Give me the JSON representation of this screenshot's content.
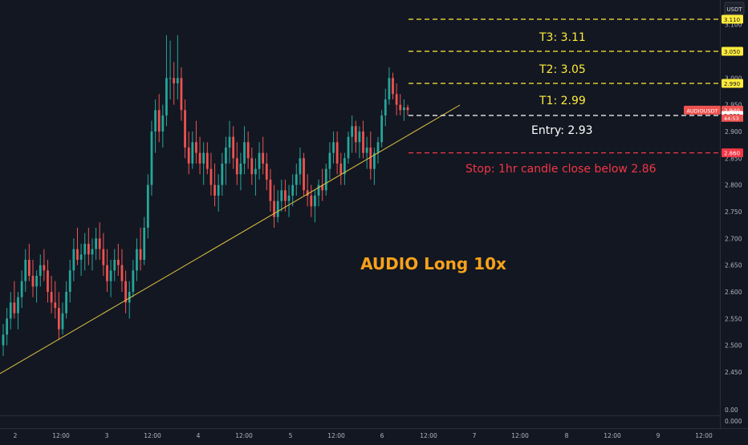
{
  "chart_data": {
    "type": "candlestick",
    "title": "AUDIO  Long 10x",
    "symbol": "AUDIOUSDT",
    "quote_currency": "USDT",
    "timeframe": "hourly",
    "price_axis": {
      "ticks": [
        "2.450",
        "2.500",
        "2.550",
        "2.600",
        "2.650",
        "2.700",
        "2.750",
        "2.800",
        "2.850",
        "2.900",
        "2.950",
        "3.000",
        "3.050",
        "3.100"
      ],
      "lower_ticks": [
        "0.00",
        "0.000"
      ]
    },
    "time_axis": {
      "ticks": [
        "2",
        "12:00",
        "3",
        "12:00",
        "4",
        "12:00",
        "5",
        "12:00",
        "6",
        "12:00",
        "7",
        "12:00",
        "8",
        "12:00",
        "9",
        "12:00"
      ]
    },
    "price_labels": [
      {
        "key": "t3",
        "text": "3.110",
        "value": 3.11,
        "color": "#ffeb3b"
      },
      {
        "key": "t2",
        "text": "3.050",
        "value": 3.05,
        "color": "#ffeb3b"
      },
      {
        "key": "t1",
        "text": "2.990",
        "value": 2.99,
        "color": "#ffeb3b"
      },
      {
        "key": "cur",
        "text": "2.940",
        "value": 2.94,
        "color": "#ef5350"
      },
      {
        "key": "entry",
        "text": "2.930",
        "value": 2.93,
        "color": "#ffffff"
      },
      {
        "key": "stop",
        "text": "2.860",
        "value": 2.86,
        "color": "#f23645"
      }
    ],
    "current_price": {
      "symbol_label": "AUDIOUSDT",
      "value": "2.940",
      "countdown": "44:53"
    },
    "levels": [
      {
        "name": "T3",
        "label": "T3: 3.11",
        "value": 3.11,
        "color": "#ffeb3b"
      },
      {
        "name": "T2",
        "label": "T2: 3.05",
        "value": 3.05,
        "color": "#ffeb3b"
      },
      {
        "name": "T1",
        "label": "T1: 2.99",
        "value": 2.99,
        "color": "#ffeb3b"
      },
      {
        "name": "Entry",
        "label": "Entry: 2.93",
        "value": 2.93,
        "color": "#ffffff"
      },
      {
        "name": "Stop",
        "label": "Stop: 1hr candle close below 2.86",
        "value": 2.86,
        "color": "#f23645"
      }
    ],
    "trendline": {
      "from": {
        "x": "2 05:00",
        "y": 2.44
      },
      "to": {
        "x": "6 17:00",
        "y": 2.96
      },
      "color": "#e0c341"
    },
    "candles": [
      {
        "o": 2.5,
        "h": 2.54,
        "l": 2.48,
        "c": 2.52
      },
      {
        "o": 2.52,
        "h": 2.57,
        "l": 2.5,
        "c": 2.55
      },
      {
        "o": 2.55,
        "h": 2.6,
        "l": 2.53,
        "c": 2.58
      },
      {
        "o": 2.58,
        "h": 2.62,
        "l": 2.55,
        "c": 2.56
      },
      {
        "o": 2.56,
        "h": 2.6,
        "l": 2.53,
        "c": 2.59
      },
      {
        "o": 2.59,
        "h": 2.64,
        "l": 2.57,
        "c": 2.62
      },
      {
        "o": 2.62,
        "h": 2.68,
        "l": 2.6,
        "c": 2.66
      },
      {
        "o": 2.66,
        "h": 2.69,
        "l": 2.62,
        "c": 2.63
      },
      {
        "o": 2.63,
        "h": 2.66,
        "l": 2.59,
        "c": 2.61
      },
      {
        "o": 2.61,
        "h": 2.64,
        "l": 2.58,
        "c": 2.63
      },
      {
        "o": 2.63,
        "h": 2.67,
        "l": 2.61,
        "c": 2.65
      },
      {
        "o": 2.65,
        "h": 2.68,
        "l": 2.62,
        "c": 2.64
      },
      {
        "o": 2.64,
        "h": 2.66,
        "l": 2.58,
        "c": 2.6
      },
      {
        "o": 2.6,
        "h": 2.63,
        "l": 2.56,
        "c": 2.58
      },
      {
        "o": 2.58,
        "h": 2.62,
        "l": 2.55,
        "c": 2.57
      },
      {
        "o": 2.57,
        "h": 2.6,
        "l": 2.51,
        "c": 2.53
      },
      {
        "o": 2.53,
        "h": 2.58,
        "l": 2.52,
        "c": 2.56
      },
      {
        "o": 2.56,
        "h": 2.62,
        "l": 2.55,
        "c": 2.6
      },
      {
        "o": 2.6,
        "h": 2.66,
        "l": 2.58,
        "c": 2.64
      },
      {
        "o": 2.64,
        "h": 2.7,
        "l": 2.62,
        "c": 2.68
      },
      {
        "o": 2.68,
        "h": 2.72,
        "l": 2.65,
        "c": 2.66
      },
      {
        "o": 2.66,
        "h": 2.69,
        "l": 2.63,
        "c": 2.67
      },
      {
        "o": 2.67,
        "h": 2.71,
        "l": 2.64,
        "c": 2.69
      },
      {
        "o": 2.69,
        "h": 2.72,
        "l": 2.65,
        "c": 2.67
      },
      {
        "o": 2.67,
        "h": 2.7,
        "l": 2.64,
        "c": 2.68
      },
      {
        "o": 2.68,
        "h": 2.72,
        "l": 2.66,
        "c": 2.7
      },
      {
        "o": 2.7,
        "h": 2.73,
        "l": 2.66,
        "c": 2.68
      },
      {
        "o": 2.68,
        "h": 2.71,
        "l": 2.63,
        "c": 2.65
      },
      {
        "o": 2.65,
        "h": 2.68,
        "l": 2.6,
        "c": 2.62
      },
      {
        "o": 2.62,
        "h": 2.66,
        "l": 2.59,
        "c": 2.64
      },
      {
        "o": 2.64,
        "h": 2.68,
        "l": 2.62,
        "c": 2.66
      },
      {
        "o": 2.66,
        "h": 2.69,
        "l": 2.63,
        "c": 2.65
      },
      {
        "o": 2.65,
        "h": 2.68,
        "l": 2.6,
        "c": 2.62
      },
      {
        "o": 2.62,
        "h": 2.64,
        "l": 2.56,
        "c": 2.58
      },
      {
        "o": 2.58,
        "h": 2.62,
        "l": 2.55,
        "c": 2.6
      },
      {
        "o": 2.6,
        "h": 2.66,
        "l": 2.59,
        "c": 2.64
      },
      {
        "o": 2.64,
        "h": 2.7,
        "l": 2.62,
        "c": 2.68
      },
      {
        "o": 2.68,
        "h": 2.72,
        "l": 2.64,
        "c": 2.66
      },
      {
        "o": 2.66,
        "h": 2.74,
        "l": 2.65,
        "c": 2.72
      },
      {
        "o": 2.72,
        "h": 2.82,
        "l": 2.7,
        "c": 2.8
      },
      {
        "o": 2.8,
        "h": 2.92,
        "l": 2.78,
        "c": 2.9
      },
      {
        "o": 2.9,
        "h": 2.96,
        "l": 2.86,
        "c": 2.94
      },
      {
        "o": 2.94,
        "h": 2.97,
        "l": 2.88,
        "c": 2.9
      },
      {
        "o": 2.9,
        "h": 2.95,
        "l": 2.87,
        "c": 2.93
      },
      {
        "o": 2.93,
        "h": 3.08,
        "l": 2.91,
        "c": 3.0
      },
      {
        "o": 3.0,
        "h": 3.07,
        "l": 2.96,
        "c": 3.0
      },
      {
        "o": 3.0,
        "h": 3.03,
        "l": 2.95,
        "c": 2.99
      },
      {
        "o": 2.99,
        "h": 3.08,
        "l": 2.96,
        "c": 3.0
      },
      {
        "o": 3.0,
        "h": 3.02,
        "l": 2.92,
        "c": 2.94
      },
      {
        "o": 2.94,
        "h": 2.96,
        "l": 2.85,
        "c": 2.87
      },
      {
        "o": 2.87,
        "h": 2.9,
        "l": 2.82,
        "c": 2.84
      },
      {
        "o": 2.84,
        "h": 2.9,
        "l": 2.83,
        "c": 2.88
      },
      {
        "o": 2.88,
        "h": 2.92,
        "l": 2.84,
        "c": 2.86
      },
      {
        "o": 2.86,
        "h": 2.89,
        "l": 2.82,
        "c": 2.84
      },
      {
        "o": 2.84,
        "h": 2.88,
        "l": 2.8,
        "c": 2.86
      },
      {
        "o": 2.86,
        "h": 2.88,
        "l": 2.82,
        "c": 2.83
      },
      {
        "o": 2.83,
        "h": 2.86,
        "l": 2.78,
        "c": 2.8
      },
      {
        "o": 2.8,
        "h": 2.84,
        "l": 2.76,
        "c": 2.78
      },
      {
        "o": 2.78,
        "h": 2.82,
        "l": 2.75,
        "c": 2.8
      },
      {
        "o": 2.8,
        "h": 2.86,
        "l": 2.78,
        "c": 2.84
      },
      {
        "o": 2.84,
        "h": 2.89,
        "l": 2.8,
        "c": 2.87
      },
      {
        "o": 2.87,
        "h": 2.92,
        "l": 2.84,
        "c": 2.89
      },
      {
        "o": 2.89,
        "h": 2.91,
        "l": 2.83,
        "c": 2.85
      },
      {
        "o": 2.85,
        "h": 2.88,
        "l": 2.8,
        "c": 2.82
      },
      {
        "o": 2.82,
        "h": 2.86,
        "l": 2.79,
        "c": 2.84
      },
      {
        "o": 2.84,
        "h": 2.91,
        "l": 2.82,
        "c": 2.88
      },
      {
        "o": 2.88,
        "h": 2.9,
        "l": 2.83,
        "c": 2.85
      },
      {
        "o": 2.85,
        "h": 2.87,
        "l": 2.8,
        "c": 2.82
      },
      {
        "o": 2.82,
        "h": 2.85,
        "l": 2.78,
        "c": 2.83
      },
      {
        "o": 2.83,
        "h": 2.88,
        "l": 2.81,
        "c": 2.86
      },
      {
        "o": 2.86,
        "h": 2.89,
        "l": 2.82,
        "c": 2.84
      },
      {
        "o": 2.84,
        "h": 2.86,
        "l": 2.79,
        "c": 2.81
      },
      {
        "o": 2.81,
        "h": 2.83,
        "l": 2.75,
        "c": 2.77
      },
      {
        "o": 2.77,
        "h": 2.8,
        "l": 2.72,
        "c": 2.74
      },
      {
        "o": 2.74,
        "h": 2.79,
        "l": 2.73,
        "c": 2.77
      },
      {
        "o": 2.77,
        "h": 2.81,
        "l": 2.75,
        "c": 2.79
      },
      {
        "o": 2.79,
        "h": 2.81,
        "l": 2.75,
        "c": 2.77
      },
      {
        "o": 2.77,
        "h": 2.8,
        "l": 2.74,
        "c": 2.78
      },
      {
        "o": 2.78,
        "h": 2.82,
        "l": 2.76,
        "c": 2.8
      },
      {
        "o": 2.8,
        "h": 2.84,
        "l": 2.78,
        "c": 2.82
      },
      {
        "o": 2.82,
        "h": 2.87,
        "l": 2.8,
        "c": 2.85
      },
      {
        "o": 2.85,
        "h": 2.86,
        "l": 2.78,
        "c": 2.79
      },
      {
        "o": 2.79,
        "h": 2.82,
        "l": 2.76,
        "c": 2.78
      },
      {
        "o": 2.78,
        "h": 2.8,
        "l": 2.74,
        "c": 2.76
      },
      {
        "o": 2.76,
        "h": 2.79,
        "l": 2.73,
        "c": 2.78
      },
      {
        "o": 2.78,
        "h": 2.81,
        "l": 2.76,
        "c": 2.8
      },
      {
        "o": 2.8,
        "h": 2.83,
        "l": 2.77,
        "c": 2.79
      },
      {
        "o": 2.79,
        "h": 2.84,
        "l": 2.78,
        "c": 2.83
      },
      {
        "o": 2.83,
        "h": 2.88,
        "l": 2.81,
        "c": 2.86
      },
      {
        "o": 2.86,
        "h": 2.9,
        "l": 2.84,
        "c": 2.88
      },
      {
        "o": 2.88,
        "h": 2.9,
        "l": 2.82,
        "c": 2.84
      },
      {
        "o": 2.84,
        "h": 2.86,
        "l": 2.8,
        "c": 2.82
      },
      {
        "o": 2.82,
        "h": 2.86,
        "l": 2.8,
        "c": 2.85
      },
      {
        "o": 2.85,
        "h": 2.9,
        "l": 2.84,
        "c": 2.89
      },
      {
        "o": 2.89,
        "h": 2.93,
        "l": 2.86,
        "c": 2.91
      },
      {
        "o": 2.91,
        "h": 2.92,
        "l": 2.86,
        "c": 2.88
      },
      {
        "o": 2.88,
        "h": 2.91,
        "l": 2.85,
        "c": 2.9
      },
      {
        "o": 2.9,
        "h": 2.92,
        "l": 2.85,
        "c": 2.86
      },
      {
        "o": 2.86,
        "h": 2.89,
        "l": 2.83,
        "c": 2.87
      },
      {
        "o": 2.87,
        "h": 2.9,
        "l": 2.81,
        "c": 2.83
      },
      {
        "o": 2.83,
        "h": 2.87,
        "l": 2.8,
        "c": 2.86
      },
      {
        "o": 2.86,
        "h": 2.89,
        "l": 2.84,
        "c": 2.88
      },
      {
        "o": 2.88,
        "h": 2.94,
        "l": 2.87,
        "c": 2.93
      },
      {
        "o": 2.93,
        "h": 2.98,
        "l": 2.91,
        "c": 2.96
      },
      {
        "o": 2.96,
        "h": 3.02,
        "l": 2.95,
        "c": 3.0
      },
      {
        "o": 3.0,
        "h": 3.01,
        "l": 2.96,
        "c": 2.97
      },
      {
        "o": 2.97,
        "h": 2.99,
        "l": 2.93,
        "c": 2.95
      },
      {
        "o": 2.95,
        "h": 2.97,
        "l": 2.93,
        "c": 2.94
      },
      {
        "o": 2.94,
        "h": 2.96,
        "l": 2.92,
        "c": 2.945
      },
      {
        "o": 2.945,
        "h": 2.95,
        "l": 2.93,
        "c": 2.94
      }
    ]
  }
}
